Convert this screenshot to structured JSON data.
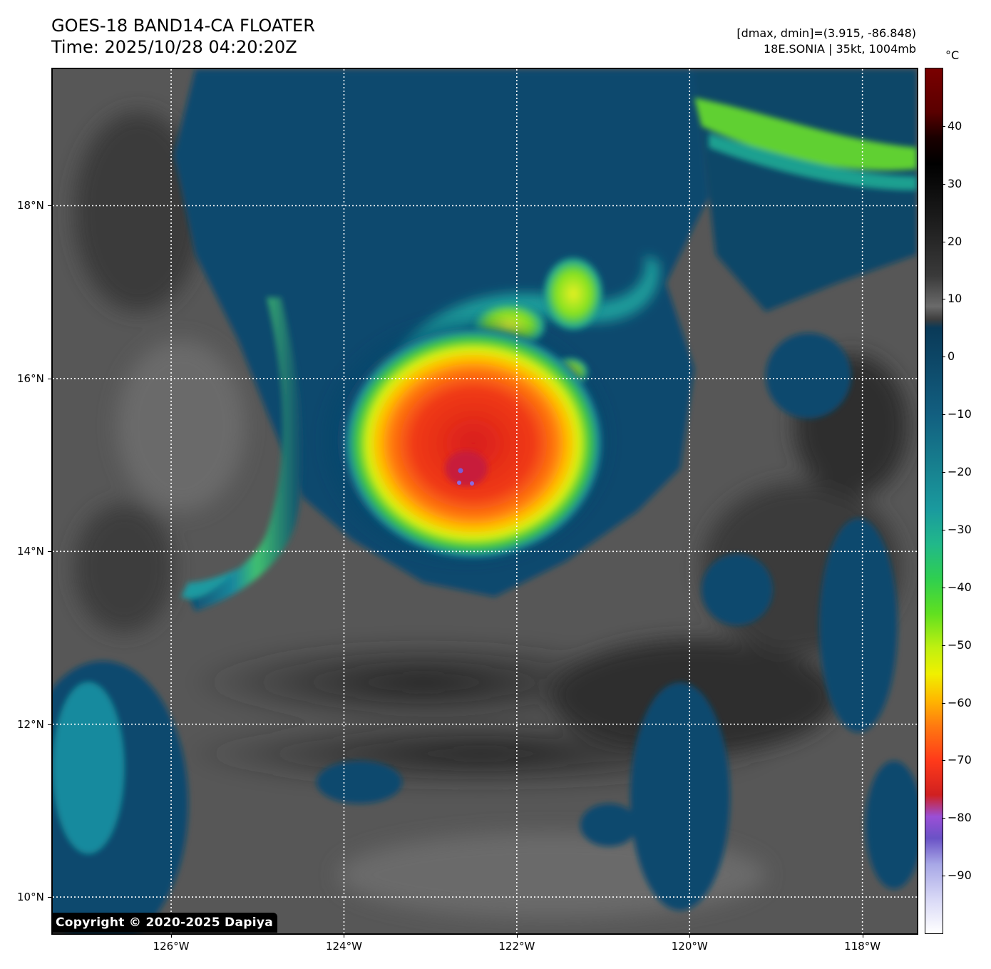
{
  "header": {
    "title_line1": "GOES-18 BAND14-CA FLOATER",
    "title_line2": "Time: 2025/10/28 04:20:20Z",
    "info_line1": "[dmax, dmin]=(3.915, -86.848)",
    "info_line2": "18E.SONIA | 35kt, 1004mb"
  },
  "map": {
    "lat_labels": [
      "18°N",
      "16°N",
      "14°N",
      "12°N",
      "10°N"
    ],
    "lon_labels": [
      "126°W",
      "124°W",
      "122°W",
      "120°W",
      "118°W"
    ],
    "lat_values": [
      18,
      16,
      14,
      12,
      10
    ],
    "lon_values": [
      -126,
      -124,
      -122,
      -120,
      -118
    ],
    "lat_range": [
      9.58,
      19.58
    ],
    "lon_range": [
      -127.37,
      -117.37
    ],
    "gridlines": "dotted white",
    "storm_center": {
      "lat": 14.95,
      "lon": -122.65
    },
    "copyright": "Copyright © 2020-2025 Dapiya"
  },
  "colorbar": {
    "unit": "°C",
    "tick_labels": [
      "40",
      "30",
      "20",
      "10",
      "0",
      "−10",
      "−20",
      "−30",
      "−40",
      "−50",
      "−60",
      "−70",
      "−80",
      "−90"
    ],
    "tick_values": [
      40,
      30,
      20,
      10,
      0,
      -10,
      -20,
      -30,
      -40,
      -50,
      -60,
      -70,
      -80,
      -90
    ],
    "range": [
      -100,
      50
    ]
  },
  "colors": {
    "land_sea_gray": "#4e4e4e",
    "cold_cloud_blue": "#0f4a6e",
    "cloud_cyan": "#1a9a9e",
    "cloud_green": "#60e020",
    "cloud_yellow": "#f0f000",
    "cloud_orange": "#ff7a10",
    "cloud_red": "#e82a14",
    "overshoot_purple": "#7a5ad6"
  }
}
